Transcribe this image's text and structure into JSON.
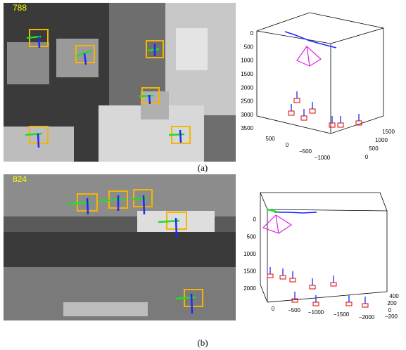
{
  "panels": [
    {
      "frame_number": "788",
      "label": "(a)",
      "plot": {
        "vertical_ticks": [
          "0",
          "500",
          "1000",
          "1500",
          "2000",
          "2500",
          "3000",
          "3500"
        ],
        "depth_ticks": [
          "500",
          "0",
          "−500",
          "−1000"
        ],
        "side_ticks": [
          "1500",
          "1000",
          "500",
          "0"
        ]
      }
    },
    {
      "frame_number": "824",
      "label": "(b)",
      "plot": {
        "vertical_ticks": [
          "0",
          "500",
          "1000",
          "1500",
          "2000"
        ],
        "depth_ticks": [
          "0",
          "−500",
          "−1000",
          "−1500",
          "−2000"
        ],
        "side_ticks": [
          "400",
          "200",
          "0",
          "−200"
        ]
      }
    }
  ]
}
